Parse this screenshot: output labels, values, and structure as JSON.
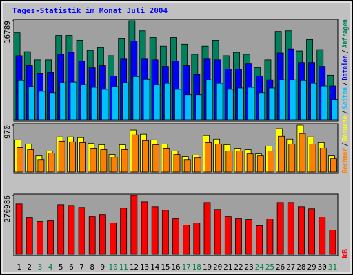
{
  "chart_data": [
    {
      "type": "bar",
      "title": "Tages-Statistik im Monat Juli 2004",
      "categories": [
        1,
        2,
        3,
        4,
        5,
        6,
        7,
        8,
        9,
        10,
        11,
        12,
        13,
        14,
        15,
        16,
        17,
        18,
        19,
        20,
        21,
        22,
        23,
        24,
        25,
        26,
        27,
        28,
        29,
        30,
        31
      ],
      "category_colors": [
        "#000000",
        "#000000",
        "#008040",
        "#008040",
        "#000000",
        "#000000",
        "#000000",
        "#000000",
        "#000000",
        "#008040",
        "#008040",
        "#000000",
        "#000000",
        "#000000",
        "#000000",
        "#000000",
        "#008040",
        "#008040",
        "#000000",
        "#000000",
        "#000000",
        "#000000",
        "#000000",
        "#008040",
        "#008040",
        "#000000",
        "#000000",
        "#000000",
        "#000000",
        "#000000",
        "#008040"
      ],
      "separator": "/",
      "ylim": [
        0,
        16789
      ],
      "yticks": [
        16789
      ],
      "series": [
        {
          "name": "Anfragen",
          "color": "#00805c",
          "values": [
            14730,
            11530,
            10160,
            10160,
            14270,
            14270,
            13480,
            11760,
            12220,
            10850,
            13820,
            16789,
            15070,
            13930,
            12450,
            13930,
            12790,
            11080,
            12450,
            13480,
            10850,
            11420,
            11080,
            8790,
            10160,
            14960,
            15070,
            11650,
            13590,
            11880,
            7540
          ]
        },
        {
          "name": "Dateien",
          "color": "#0000ff",
          "values": [
            10850,
            9140,
            7880,
            7990,
            11080,
            11420,
            9940,
            8790,
            9140,
            7420,
            10280,
            13360,
            10280,
            10160,
            9020,
            9940,
            9140,
            7650,
            10280,
            10160,
            8570,
            8570,
            9480,
            7420,
            6740,
            11310,
            11990,
            9710,
            9710,
            9020,
            5710
          ]
        },
        {
          "name": "Seiten",
          "color": "#00c0ff",
          "values": [
            6620,
            5600,
            4800,
            4570,
            6280,
            6400,
            5940,
            5480,
            5140,
            5600,
            6280,
            7310,
            6850,
            5940,
            6170,
            5140,
            4230,
            4230,
            6740,
            6170,
            5140,
            5370,
            5480,
            4570,
            5370,
            6740,
            6740,
            6620,
            6170,
            5710,
            3430
          ]
        }
      ]
    },
    {
      "type": "bar",
      "ylim": [
        0,
        970
      ],
      "yticks": [
        970
      ],
      "series": [
        {
          "name": "Besuche",
          "color": "#ffff00",
          "values": [
            666,
            579,
            333,
            434,
            724,
            724,
            710,
            594,
            565,
            362,
            565,
            869,
            782,
            666,
            579,
            434,
            319,
            348,
            753,
            681,
            565,
            478,
            463,
            376,
            536,
            898,
            681,
            970,
            724,
            608,
            333
          ]
        },
        {
          "name": "Rechner",
          "color": "#ff8000",
          "values": [
            507,
            463,
            246,
            391,
            637,
            623,
            608,
            478,
            463,
            304,
            463,
            767,
            652,
            565,
            478,
            362,
            246,
            290,
            608,
            579,
            434,
            434,
            376,
            333,
            434,
            738,
            579,
            796,
            579,
            492,
            275
          ]
        }
      ]
    },
    {
      "type": "bar",
      "ylim": [
        0,
        270986
      ],
      "yticks": [
        270986
      ],
      "series": [
        {
          "name": "kB",
          "color": "#ff0000",
          "values": [
            230510,
            168210,
            149520,
            155750,
            227400,
            224280,
            214940,
            174440,
            180670,
            143290,
            211820,
            270986,
            239860,
            218050,
            202480,
            165100,
            133950,
            143290,
            236740,
            205590,
            174440,
            165100,
            158870,
            130830,
            161980,
            236740,
            236740,
            218050,
            208710,
            171330,
            112140
          ]
        }
      ]
    }
  ]
}
